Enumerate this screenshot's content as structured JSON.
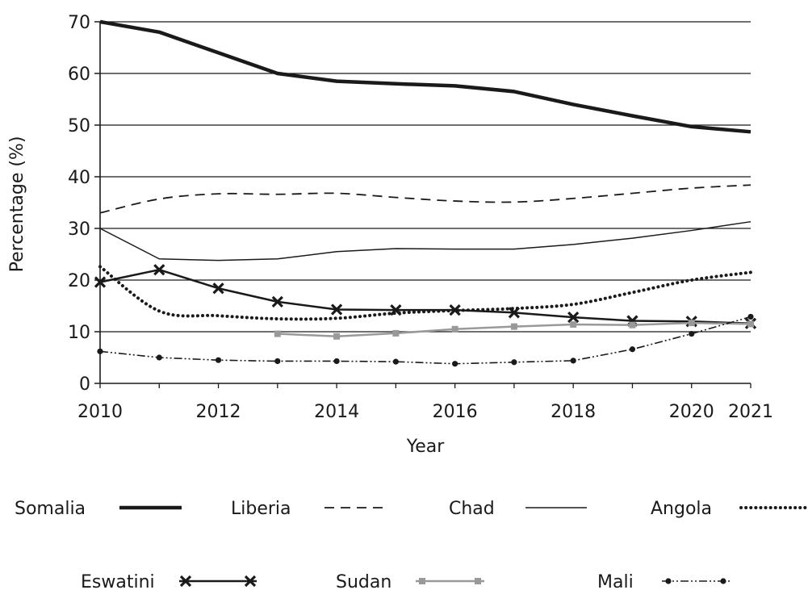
{
  "chart_data": {
    "type": "line",
    "xlabel": "Year",
    "ylabel": "Percentage (%)",
    "xlim": [
      2010,
      2021
    ],
    "ylim": [
      0,
      70
    ],
    "x_ticks": [
      2010,
      2012,
      2014,
      2016,
      2018,
      2020,
      2021
    ],
    "y_ticks": [
      0,
      10,
      20,
      30,
      40,
      50,
      60,
      70
    ],
    "grid": "horizontal",
    "legend_position": "bottom",
    "series": [
      {
        "name": "Somalia",
        "style": "thick-solid",
        "color": "#1a1a1a",
        "x": [
          2010,
          2011,
          2012,
          2013,
          2014,
          2015,
          2016,
          2017,
          2018,
          2019,
          2020,
          2021
        ],
        "values": [
          70,
          68,
          64,
          60,
          58.5,
          58,
          57.6,
          56.5,
          54,
          51.8,
          49.7,
          48.7
        ]
      },
      {
        "name": "Liberia",
        "style": "dashed",
        "color": "#1a1a1a",
        "x": [
          2010,
          2011,
          2012,
          2013,
          2014,
          2015,
          2016,
          2017,
          2018,
          2019,
          2020,
          2021
        ],
        "values": [
          33,
          35.7,
          36.7,
          36.6,
          36.8,
          36,
          35.3,
          35.1,
          35.8,
          36.8,
          37.8,
          38.4
        ]
      },
      {
        "name": "Chad",
        "style": "thin-solid",
        "color": "#1a1a1a",
        "x": [
          2010,
          2011,
          2012,
          2013,
          2014,
          2015,
          2016,
          2017,
          2018,
          2019,
          2020,
          2021
        ],
        "values": [
          30,
          24.1,
          23.8,
          24.1,
          25.5,
          26.1,
          26,
          26,
          26.9,
          28.1,
          29.6,
          31.3
        ]
      },
      {
        "name": "Angola",
        "style": "dotted",
        "color": "#1a1a1a",
        "x": [
          2010,
          2011,
          2012,
          2013,
          2014,
          2015,
          2016,
          2017,
          2018,
          2019,
          2020,
          2021
        ],
        "values": [
          22.6,
          14,
          13.1,
          12.5,
          12.6,
          13.6,
          14.1,
          14.5,
          15.3,
          17.6,
          20,
          21.5
        ]
      },
      {
        "name": "Eswatini",
        "style": "x-marker",
        "color": "#1a1a1a",
        "x": [
          2010,
          2011,
          2012,
          2013,
          2014,
          2015,
          2016,
          2017,
          2018,
          2019,
          2020,
          2021
        ],
        "values": [
          19.6,
          22,
          18.4,
          15.8,
          14.3,
          14.2,
          14.2,
          13.7,
          12.8,
          12.1,
          12,
          11.6
        ]
      },
      {
        "name": "Sudan",
        "style": "gray-square",
        "color": "#999999",
        "x": [
          2013,
          2014,
          2015,
          2016,
          2017,
          2018,
          2019,
          2020,
          2021
        ],
        "values": [
          9.6,
          9.1,
          9.7,
          10.5,
          11,
          11.4,
          11.3,
          11.7,
          11.5
        ]
      },
      {
        "name": "Mali",
        "style": "dash-dot-dot",
        "color": "#1a1a1a",
        "x": [
          2010,
          2011,
          2012,
          2013,
          2014,
          2015,
          2016,
          2017,
          2018,
          2019,
          2020,
          2021
        ],
        "values": [
          6.2,
          5,
          4.5,
          4.3,
          4.3,
          4.2,
          3.8,
          4.1,
          4.4,
          6.6,
          9.6,
          12.9
        ]
      }
    ]
  }
}
